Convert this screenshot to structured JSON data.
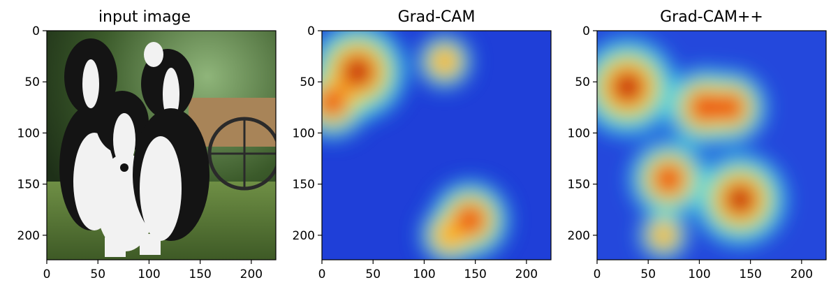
{
  "panels": [
    {
      "title": "input image"
    },
    {
      "title": "Grad-CAM"
    },
    {
      "title": "Grad-CAM++"
    }
  ],
  "axes": {
    "x_ticks": [
      "0",
      "50",
      "100",
      "150",
      "200"
    ],
    "y_ticks": [
      "0",
      "50",
      "100",
      "150",
      "200"
    ],
    "x_range": [
      0,
      224
    ],
    "y_range": [
      0,
      224
    ]
  },
  "colors": {
    "jet_low": "#00007f",
    "jet_mid": "#7fff7f",
    "jet_high": "#7f0000",
    "grass": "#5a7a3a",
    "fur_dark": "#141414",
    "fur_light": "#f2f2f2"
  },
  "heatmaps": {
    "gradcam": [
      {
        "x": 35,
        "y": 40,
        "intensity": 1.0
      },
      {
        "x": 10,
        "y": 70,
        "intensity": 0.75
      },
      {
        "x": 120,
        "y": 30,
        "intensity": 0.55
      },
      {
        "x": 145,
        "y": 185,
        "intensity": 0.8
      },
      {
        "x": 125,
        "y": 200,
        "intensity": 0.6
      }
    ],
    "gradcampp": [
      {
        "x": 30,
        "y": 55,
        "intensity": 1.0
      },
      {
        "x": 105,
        "y": 75,
        "intensity": 0.8
      },
      {
        "x": 130,
        "y": 75,
        "intensity": 0.75
      },
      {
        "x": 70,
        "y": 145,
        "intensity": 0.8
      },
      {
        "x": 140,
        "y": 165,
        "intensity": 0.95
      },
      {
        "x": 65,
        "y": 200,
        "intensity": 0.5
      }
    ]
  }
}
